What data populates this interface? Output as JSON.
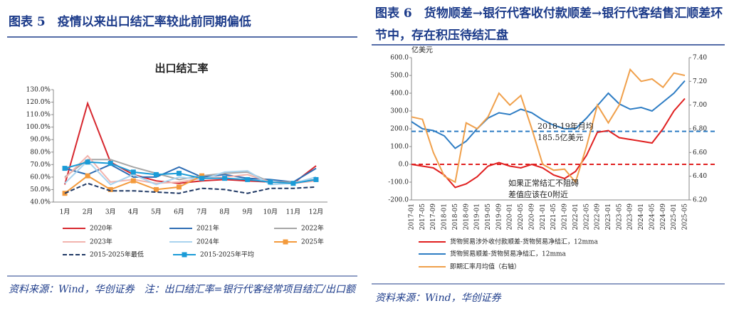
{
  "chart_data": [
    {
      "type": "line",
      "caption": "图表 5　疫情以来出口结汇率较此前同期偏低",
      "title": "出口结汇率",
      "source": "资料来源：Wind，华创证券　注：出口结汇率=银行代客经常项目结汇/出口额",
      "categories": [
        "1月",
        "2月",
        "3月",
        "4月",
        "5月",
        "6月",
        "7月",
        "8月",
        "9月",
        "10月",
        "11月",
        "12月"
      ],
      "ylim": [
        40,
        130
      ],
      "yticks": [
        {
          "value": 40,
          "label": "40.0%"
        },
        {
          "value": 50,
          "label": "50.0%"
        },
        {
          "value": 60,
          "label": "60.0%"
        },
        {
          "value": 70,
          "label": "70.0%"
        },
        {
          "value": 80,
          "label": "80.0%"
        },
        {
          "value": 90,
          "label": "90.0%"
        },
        {
          "value": 100,
          "label": "100.0%"
        },
        {
          "value": 110,
          "label": "110.0%"
        },
        {
          "value": 120,
          "label": "120.0%"
        },
        {
          "value": 130,
          "label": "130.0%"
        }
      ],
      "grid": false,
      "series": [
        {
          "name": "2020年",
          "color": "#d7282f",
          "values": [
            54,
            119,
            72,
            62,
            57,
            55,
            57,
            58,
            57,
            56,
            55,
            69
          ]
        },
        {
          "name": "2021年",
          "color": "#2e6db4",
          "values": [
            67,
            62,
            70,
            60,
            60,
            68,
            60,
            62,
            59,
            58,
            56,
            67
          ]
        },
        {
          "name": "2022年",
          "color": "#a6a6a6",
          "values": [
            60,
            74,
            74,
            68,
            63,
            58,
            61,
            63,
            64,
            56,
            56,
            58
          ]
        },
        {
          "name": "2023年",
          "color": "#f2b4ae",
          "values": [
            59,
            77,
            56,
            58,
            55,
            56,
            59,
            60,
            62,
            56,
            55,
            57
          ]
        },
        {
          "name": "2024年",
          "color": "#a9d3ee",
          "values": [
            55,
            73,
            54,
            62,
            54,
            60,
            58,
            64,
            65,
            54,
            55,
            60
          ]
        },
        {
          "name": "2025年",
          "color": "#f39a3c",
          "marker": "square",
          "values": [
            47,
            61,
            50,
            57,
            50,
            52,
            61,
            null,
            null,
            null,
            null,
            null
          ]
        },
        {
          "name": "2015-2025年最低",
          "color": "#1f3864",
          "dash": true,
          "values": [
            47,
            55,
            49,
            49,
            48,
            47,
            51,
            50,
            47,
            51,
            51,
            52
          ]
        },
        {
          "name": "2015-2025年平均",
          "color": "#1a9bd7",
          "marker": "square",
          "values": [
            67,
            72,
            71,
            64,
            62,
            63,
            59,
            59,
            58,
            56,
            55,
            58
          ]
        }
      ]
    },
    {
      "type": "line",
      "caption": "图表 6　货物顺差→银行代客收付款顺差→银行代客结售汇顺差环节中，存在积压待结汇盘",
      "source": "资料来源：Wind，华创证券",
      "y_label": "亿美元",
      "categories": [
        "2017-01",
        "2017-05",
        "2017-09",
        "2018-01",
        "2018-05",
        "2018-09",
        "2019-01",
        "2019-05",
        "2019-09",
        "2020-01",
        "2020-05",
        "2020-09",
        "2021-01",
        "2021-05",
        "2021-09",
        "2022-01",
        "2022-05",
        "2022-09",
        "2023-01",
        "2023-05",
        "2023-09",
        "2024-01",
        "2024-05",
        "2024-09",
        "2025-01",
        "2025-05"
      ],
      "ylim": [
        -200,
        600
      ],
      "yticks": [
        {
          "value": -200,
          "label": "-200.0"
        },
        {
          "value": -100,
          "label": "-100.0"
        },
        {
          "value": 0,
          "label": "0.0"
        },
        {
          "value": 100,
          "label": "100.0"
        },
        {
          "value": 200,
          "label": "200.0"
        },
        {
          "value": 300,
          "label": "300.0"
        },
        {
          "value": 400,
          "label": "400.0"
        },
        {
          "value": 500,
          "label": "500.0"
        },
        {
          "value": 600,
          "label": "600.0"
        }
      ],
      "y2lim": [
        6.2,
        7.4
      ],
      "y2ticks": [
        {
          "value": 6.2,
          "label": "6.20"
        },
        {
          "value": 6.4,
          "label": "6.40"
        },
        {
          "value": 6.6,
          "label": "6.60"
        },
        {
          "value": 6.8,
          "label": "6.80"
        },
        {
          "value": 7.0,
          "label": "7.00"
        },
        {
          "value": 7.2,
          "label": "7.20"
        },
        {
          "value": 7.4,
          "label": "7.40"
        }
      ],
      "grid": false,
      "reference_lines": [
        {
          "value": 185.5,
          "color": "#2e7dc4"
        },
        {
          "value": 0,
          "color": "#e02020"
        }
      ],
      "annotations": [
        {
          "text": "2018-19年月均",
          "color": "#2e7dc4"
        },
        {
          "text": "185.5亿美元",
          "color": "#2e7dc4"
        },
        {
          "text": "如果正常结汇不阻碍",
          "color": "#e02020"
        },
        {
          "text": "差值应该在0附近",
          "color": "#e02020"
        }
      ],
      "series": [
        {
          "name": "货物贸易涉外收付款顺差-货物贸易净结汇，12mma",
          "color": "#e02020",
          "values": [
            0,
            -10,
            -20,
            -60,
            -130,
            -110,
            -70,
            -10,
            10,
            -10,
            -20,
            0,
            -20,
            -60,
            -80,
            -40,
            50,
            180,
            190,
            150,
            140,
            130,
            120,
            200,
            300,
            370
          ]
        },
        {
          "name": "货物贸易顺差-货物贸易净结汇，12mma",
          "color": "#2e7dc4",
          "values": [
            240,
            200,
            190,
            160,
            90,
            130,
            200,
            260,
            290,
            280,
            310,
            290,
            250,
            220,
            200,
            200,
            260,
            330,
            400,
            340,
            310,
            320,
            300,
            350,
            400,
            470
          ]
        },
        {
          "name": "即期汇率月均值（右轴）",
          "color": "#f0a04b",
          "axis": "y2",
          "values": [
            6.9,
            6.88,
            6.6,
            6.4,
            6.35,
            6.85,
            6.8,
            6.9,
            7.1,
            7.0,
            7.08,
            6.8,
            6.5,
            6.45,
            6.46,
            6.35,
            6.65,
            7.0,
            6.85,
            7.0,
            7.3,
            7.2,
            7.22,
            7.15,
            7.27,
            7.25
          ]
        }
      ]
    }
  ]
}
